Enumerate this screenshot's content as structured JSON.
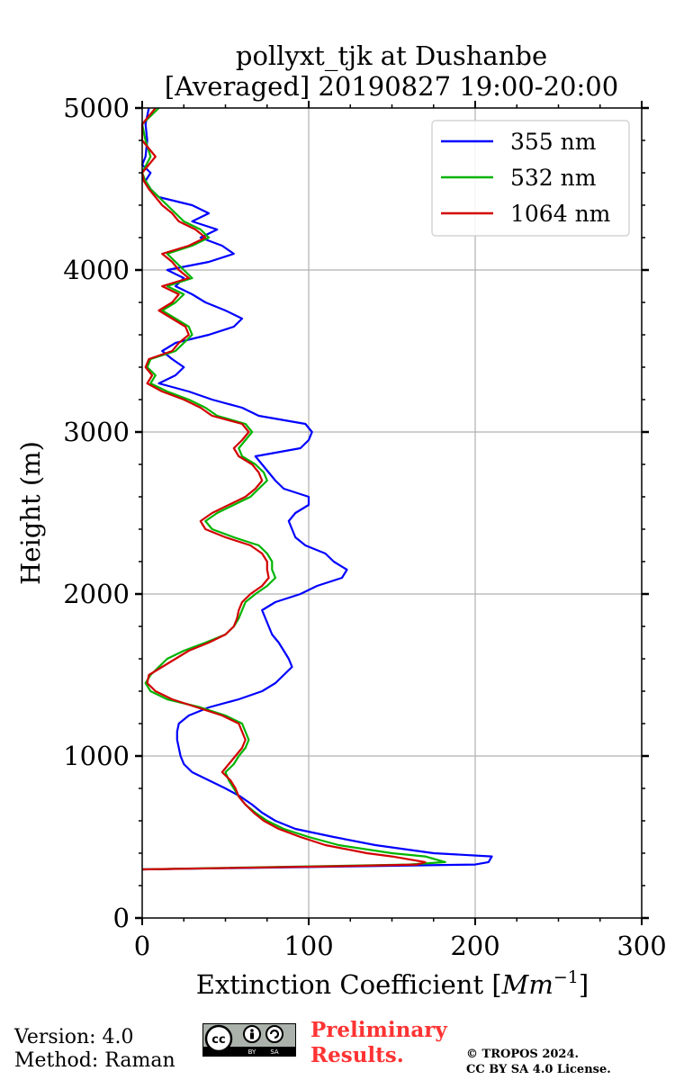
{
  "chart_data": {
    "type": "line",
    "title": "pollyxt_tjk at Dushanbe",
    "subtitle": "[Averaged] 20190827 19:00-20:00",
    "xlabel": "Extinction Coefficient [Mm^-1]",
    "xlabel_main": "Extinction Coefficient [",
    "xlabel_unit": "Mm",
    "xlabel_exp": "−1",
    "xlabel_close": "]",
    "ylabel": "Height (m)",
    "xlim": [
      0,
      300
    ],
    "ylim": [
      0,
      5000
    ],
    "xticks": [
      0,
      100,
      200,
      300
    ],
    "xtick_labels": [
      "0",
      "100",
      "200",
      "300"
    ],
    "yticks": [
      0,
      1000,
      2000,
      3000,
      4000,
      5000
    ],
    "ytick_labels": [
      "0",
      "1000",
      "2000",
      "3000",
      "4000",
      "5000"
    ],
    "grid": true,
    "legend_position": "top-right",
    "series": [
      {
        "name": "355 nm",
        "color": "#0000ff",
        "points": [
          [
            300,
            0
          ],
          [
            330,
            200
          ],
          [
            345,
            208
          ],
          [
            380,
            210
          ],
          [
            400,
            175
          ],
          [
            450,
            140
          ],
          [
            500,
            115
          ],
          [
            550,
            92
          ],
          [
            600,
            80
          ],
          [
            650,
            72
          ],
          [
            700,
            66
          ],
          [
            750,
            59
          ],
          [
            800,
            50
          ],
          [
            850,
            40
          ],
          [
            900,
            30
          ],
          [
            950,
            25
          ],
          [
            1000,
            23
          ],
          [
            1050,
            22
          ],
          [
            1100,
            21
          ],
          [
            1150,
            21
          ],
          [
            1200,
            22
          ],
          [
            1250,
            28
          ],
          [
            1300,
            40
          ],
          [
            1350,
            58
          ],
          [
            1400,
            72
          ],
          [
            1450,
            80
          ],
          [
            1500,
            85
          ],
          [
            1550,
            90
          ],
          [
            1600,
            88
          ],
          [
            1650,
            85
          ],
          [
            1700,
            82
          ],
          [
            1750,
            78
          ],
          [
            1800,
            76
          ],
          [
            1850,
            74
          ],
          [
            1900,
            72
          ],
          [
            1950,
            80
          ],
          [
            2000,
            95
          ],
          [
            2050,
            105
          ],
          [
            2100,
            120
          ],
          [
            2150,
            123
          ],
          [
            2200,
            115
          ],
          [
            2250,
            110
          ],
          [
            2300,
            98
          ],
          [
            2350,
            92
          ],
          [
            2400,
            90
          ],
          [
            2450,
            88
          ],
          [
            2500,
            92
          ],
          [
            2550,
            100
          ],
          [
            2600,
            100
          ],
          [
            2650,
            85
          ],
          [
            2700,
            80
          ],
          [
            2750,
            76
          ],
          [
            2800,
            72
          ],
          [
            2850,
            68
          ],
          [
            2900,
            95
          ],
          [
            2950,
            100
          ],
          [
            3000,
            102
          ],
          [
            3050,
            98
          ],
          [
            3100,
            70
          ],
          [
            3150,
            60
          ],
          [
            3200,
            42
          ],
          [
            3250,
            28
          ],
          [
            3300,
            10
          ],
          [
            3350,
            20
          ],
          [
            3400,
            25
          ],
          [
            3450,
            18
          ],
          [
            3500,
            12
          ],
          [
            3550,
            20
          ],
          [
            3600,
            40
          ],
          [
            3650,
            55
          ],
          [
            3700,
            60
          ],
          [
            3750,
            50
          ],
          [
            3800,
            38
          ],
          [
            3850,
            30
          ],
          [
            3900,
            20
          ],
          [
            3950,
            25
          ],
          [
            4000,
            15
          ],
          [
            4050,
            40
          ],
          [
            4100,
            55
          ],
          [
            4150,
            48
          ],
          [
            4200,
            35
          ],
          [
            4250,
            45
          ],
          [
            4300,
            30
          ],
          [
            4350,
            40
          ],
          [
            4400,
            30
          ],
          [
            4450,
            10
          ],
          [
            4500,
            5
          ],
          [
            4550,
            2
          ],
          [
            4600,
            5
          ],
          [
            4650,
            0
          ],
          [
            4700,
            2
          ],
          [
            4800,
            3
          ],
          [
            4900,
            2
          ],
          [
            5000,
            4
          ]
        ]
      },
      {
        "name": "532 nm",
        "color": "#00b400",
        "points": [
          [
            300,
            0
          ],
          [
            330,
            160
          ],
          [
            345,
            182
          ],
          [
            380,
            170
          ],
          [
            400,
            150
          ],
          [
            450,
            118
          ],
          [
            500,
            100
          ],
          [
            550,
            85
          ],
          [
            600,
            75
          ],
          [
            650,
            68
          ],
          [
            700,
            62
          ],
          [
            750,
            58
          ],
          [
            800,
            55
          ],
          [
            850,
            52
          ],
          [
            900,
            50
          ],
          [
            950,
            55
          ],
          [
            1000,
            58
          ],
          [
            1050,
            62
          ],
          [
            1100,
            64
          ],
          [
            1150,
            62
          ],
          [
            1200,
            60
          ],
          [
            1250,
            50
          ],
          [
            1300,
            35
          ],
          [
            1350,
            15
          ],
          [
            1400,
            5
          ],
          [
            1450,
            2
          ],
          [
            1500,
            5
          ],
          [
            1550,
            10
          ],
          [
            1600,
            15
          ],
          [
            1650,
            25
          ],
          [
            1700,
            38
          ],
          [
            1750,
            50
          ],
          [
            1800,
            55
          ],
          [
            1850,
            58
          ],
          [
            1900,
            60
          ],
          [
            1950,
            62
          ],
          [
            2000,
            68
          ],
          [
            2050,
            75
          ],
          [
            2100,
            80
          ],
          [
            2150,
            78
          ],
          [
            2200,
            78
          ],
          [
            2250,
            75
          ],
          [
            2300,
            70
          ],
          [
            2350,
            55
          ],
          [
            2400,
            42
          ],
          [
            2450,
            38
          ],
          [
            2500,
            45
          ],
          [
            2550,
            55
          ],
          [
            2600,
            65
          ],
          [
            2650,
            70
          ],
          [
            2700,
            75
          ],
          [
            2750,
            73
          ],
          [
            2800,
            68
          ],
          [
            2850,
            60
          ],
          [
            2900,
            58
          ],
          [
            2950,
            62
          ],
          [
            3000,
            66
          ],
          [
            3050,
            62
          ],
          [
            3100,
            45
          ],
          [
            3150,
            38
          ],
          [
            3200,
            28
          ],
          [
            3250,
            15
          ],
          [
            3300,
            5
          ],
          [
            3350,
            8
          ],
          [
            3400,
            3
          ],
          [
            3450,
            5
          ],
          [
            3500,
            20
          ],
          [
            3550,
            25
          ],
          [
            3600,
            30
          ],
          [
            3650,
            28
          ],
          [
            3700,
            20
          ],
          [
            3750,
            12
          ],
          [
            3800,
            20
          ],
          [
            3850,
            25
          ],
          [
            3900,
            15
          ],
          [
            3950,
            30
          ],
          [
            4000,
            25
          ],
          [
            4050,
            20
          ],
          [
            4100,
            15
          ],
          [
            4150,
            30
          ],
          [
            4200,
            40
          ],
          [
            4250,
            35
          ],
          [
            4300,
            25
          ],
          [
            4350,
            20
          ],
          [
            4400,
            15
          ],
          [
            4450,
            10
          ],
          [
            4500,
            5
          ],
          [
            4550,
            2
          ],
          [
            4600,
            0
          ],
          [
            4700,
            5
          ],
          [
            4800,
            2
          ],
          [
            4900,
            0
          ],
          [
            5000,
            10
          ]
        ]
      },
      {
        "name": "1064 nm",
        "color": "#d20000",
        "points": [
          [
            300,
            0
          ],
          [
            320,
            120
          ],
          [
            330,
            165
          ],
          [
            345,
            170
          ],
          [
            380,
            150
          ],
          [
            400,
            135
          ],
          [
            450,
            110
          ],
          [
            500,
            95
          ],
          [
            550,
            82
          ],
          [
            600,
            73
          ],
          [
            650,
            67
          ],
          [
            700,
            62
          ],
          [
            750,
            58
          ],
          [
            800,
            56
          ],
          [
            850,
            53
          ],
          [
            900,
            48
          ],
          [
            950,
            52
          ],
          [
            1000,
            56
          ],
          [
            1050,
            60
          ],
          [
            1100,
            62
          ],
          [
            1150,
            60
          ],
          [
            1200,
            58
          ],
          [
            1250,
            48
          ],
          [
            1300,
            33
          ],
          [
            1350,
            18
          ],
          [
            1400,
            8
          ],
          [
            1450,
            3
          ],
          [
            1500,
            4
          ],
          [
            1550,
            12
          ],
          [
            1600,
            20
          ],
          [
            1650,
            28
          ],
          [
            1700,
            40
          ],
          [
            1750,
            50
          ],
          [
            1800,
            55
          ],
          [
            1850,
            57
          ],
          [
            1900,
            58
          ],
          [
            1950,
            60
          ],
          [
            2000,
            65
          ],
          [
            2050,
            72
          ],
          [
            2100,
            76
          ],
          [
            2150,
            75
          ],
          [
            2200,
            75
          ],
          [
            2250,
            72
          ],
          [
            2300,
            65
          ],
          [
            2350,
            50
          ],
          [
            2400,
            38
          ],
          [
            2450,
            35
          ],
          [
            2500,
            42
          ],
          [
            2550,
            52
          ],
          [
            2600,
            62
          ],
          [
            2650,
            68
          ],
          [
            2700,
            72
          ],
          [
            2750,
            70
          ],
          [
            2800,
            66
          ],
          [
            2850,
            58
          ],
          [
            2900,
            55
          ],
          [
            2950,
            60
          ],
          [
            3000,
            64
          ],
          [
            3050,
            60
          ],
          [
            3100,
            42
          ],
          [
            3150,
            35
          ],
          [
            3200,
            25
          ],
          [
            3250,
            12
          ],
          [
            3300,
            3
          ],
          [
            3350,
            6
          ],
          [
            3400,
            2
          ],
          [
            3450,
            4
          ],
          [
            3500,
            18
          ],
          [
            3550,
            22
          ],
          [
            3600,
            28
          ],
          [
            3650,
            26
          ],
          [
            3700,
            18
          ],
          [
            3750,
            10
          ],
          [
            3800,
            18
          ],
          [
            3850,
            22
          ],
          [
            3900,
            12
          ],
          [
            3950,
            28
          ],
          [
            4000,
            22
          ],
          [
            4050,
            18
          ],
          [
            4100,
            12
          ],
          [
            4150,
            28
          ],
          [
            4200,
            38
          ],
          [
            4250,
            32
          ],
          [
            4300,
            22
          ],
          [
            4350,
            18
          ],
          [
            4400,
            12
          ],
          [
            4450,
            8
          ],
          [
            4500,
            4
          ],
          [
            4550,
            1
          ],
          [
            4600,
            0
          ],
          [
            4700,
            8
          ],
          [
            4800,
            0
          ],
          [
            4900,
            0
          ],
          [
            5000,
            8
          ]
        ]
      }
    ]
  },
  "footer": {
    "version": "Version: 4.0",
    "method": "Method: Raman",
    "preliminary_line1": "Preliminary",
    "preliminary_line2": "Results.",
    "preliminary_color": "#ff3333",
    "copyright_line1": "© TROPOS 2024.",
    "copyright_line2": "CC BY SA 4.0 License.",
    "cc_badge": {
      "icon": "cc-by-sa-icon",
      "cc": "cc",
      "by": "BY",
      "sa": "SA"
    }
  }
}
